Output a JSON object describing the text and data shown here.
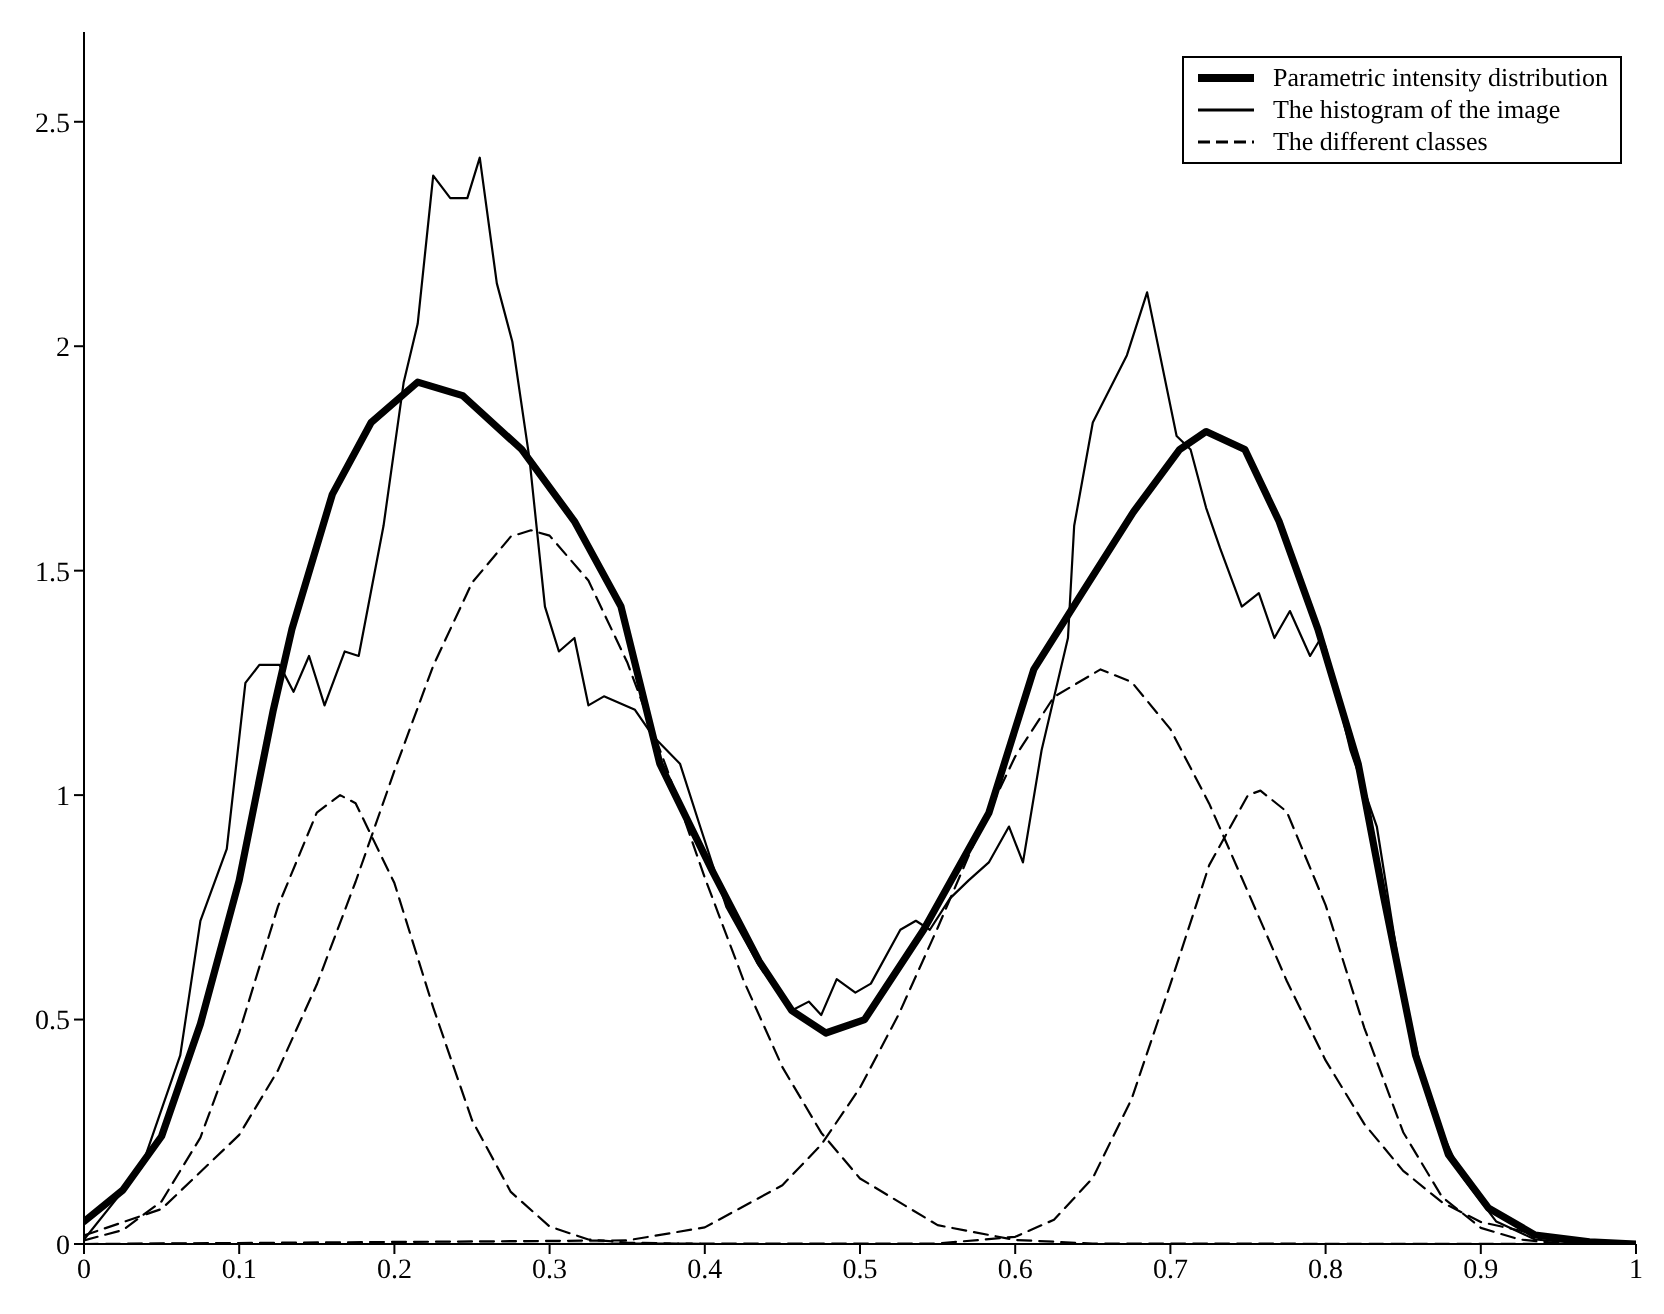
{
  "chart_data": {
    "type": "line",
    "xlim": [
      0,
      1
    ],
    "ylim": [
      0,
      2.7
    ],
    "xticks": [
      0,
      0.1,
      0.2,
      0.3,
      0.4,
      0.5,
      0.6,
      0.7,
      0.8,
      0.9,
      1
    ],
    "yticks": [
      0,
      0.5,
      1,
      1.5,
      2,
      2.5
    ],
    "grid": false,
    "legend": "top right",
    "series": [
      {
        "name": "Parametric intensity distribution",
        "color": "#000000",
        "line_style": "solid",
        "x": [
          0,
          0.025,
          0.05,
          0.075,
          0.1,
          0.122,
          0.134,
          0.16,
          0.185,
          0.215,
          0.244,
          0.282,
          0.316,
          0.346,
          0.371,
          0.405,
          0.435,
          0.456,
          0.478,
          0.503,
          0.541,
          0.583,
          0.612,
          0.643,
          0.676,
          0.706,
          0.723,
          0.748,
          0.77,
          0.795,
          0.821,
          0.837,
          0.858,
          0.879,
          0.905,
          0.935,
          0.97,
          1
        ],
        "values": [
          0.05,
          0.12,
          0.24,
          0.49,
          0.81,
          1.19,
          1.37,
          1.67,
          1.83,
          1.92,
          1.89,
          1.77,
          1.61,
          1.42,
          1.07,
          0.83,
          0.63,
          0.52,
          0.47,
          0.5,
          0.7,
          0.96,
          1.28,
          1.45,
          1.63,
          1.77,
          1.81,
          1.77,
          1.61,
          1.37,
          1.07,
          0.78,
          0.42,
          0.2,
          0.08,
          0.02,
          0.005,
          0
        ]
      },
      {
        "name": "The histogram of the image",
        "color": "#000000",
        "line_style": "solid",
        "x": [
          0,
          0.037,
          0.062,
          0.075,
          0.092,
          0.104,
          0.113,
          0.126,
          0.135,
          0.145,
          0.155,
          0.168,
          0.177,
          0.193,
          0.206,
          0.215,
          0.225,
          0.236,
          0.247,
          0.255,
          0.266,
          0.276,
          0.287,
          0.297,
          0.306,
          0.316,
          0.325,
          0.335,
          0.355,
          0.367,
          0.384,
          0.397,
          0.414,
          0.435,
          0.456,
          0.467,
          0.475,
          0.485,
          0.497,
          0.507,
          0.526,
          0.536,
          0.545,
          0.558,
          0.57,
          0.583,
          0.596,
          0.605,
          0.617,
          0.634,
          0.638,
          0.65,
          0.672,
          0.685,
          0.704,
          0.713,
          0.723,
          0.732,
          0.746,
          0.757,
          0.767,
          0.777,
          0.79,
          0.797,
          0.8,
          0.816,
          0.833,
          0.85,
          0.867,
          0.888,
          0.91,
          0.935,
          0.97,
          1
        ],
        "values": [
          0.01,
          0.17,
          0.42,
          0.72,
          0.88,
          1.25,
          1.29,
          1.29,
          1.23,
          1.31,
          1.2,
          1.32,
          1.31,
          1.6,
          1.92,
          2.05,
          2.38,
          2.33,
          2.33,
          2.42,
          2.14,
          2.01,
          1.75,
          1.42,
          1.32,
          1.35,
          1.2,
          1.22,
          1.19,
          1.13,
          1.07,
          0.93,
          0.75,
          0.62,
          0.52,
          0.54,
          0.51,
          0.59,
          0.56,
          0.58,
          0.7,
          0.72,
          0.7,
          0.77,
          0.81,
          0.85,
          0.93,
          0.85,
          1.1,
          1.35,
          1.6,
          1.83,
          1.98,
          2.12,
          1.8,
          1.77,
          1.64,
          1.55,
          1.42,
          1.45,
          1.35,
          1.41,
          1.31,
          1.35,
          1.33,
          1.1,
          0.93,
          0.56,
          0.31,
          0.15,
          0.05,
          0.01,
          0,
          0
        ]
      },
      {
        "name": "The different classes",
        "color": "#000000",
        "line_style": "dashed",
        "x": [
          0,
          0.025,
          0.05,
          0.075,
          0.1,
          0.125,
          0.15,
          0.165,
          0.175,
          0.2,
          0.225,
          0.25,
          0.275,
          0.3,
          0.325,
          0.35,
          0.4,
          1
        ],
        "values": [
          0.008,
          0.031,
          0.095,
          0.237,
          0.471,
          0.752,
          0.961,
          1,
          0.982,
          0.804,
          0.527,
          0.276,
          0.116,
          0.039,
          0.01,
          0.003,
          0,
          0
        ]
      },
      {
        "color": "#000000",
        "line_style": "dashed",
        "x": [
          0,
          0.05,
          0.1,
          0.125,
          0.15,
          0.175,
          0.2,
          0.225,
          0.25,
          0.275,
          0.288,
          0.3,
          0.325,
          0.35,
          0.375,
          0.4,
          0.425,
          0.45,
          0.475,
          0.5,
          0.55,
          0.6,
          0.65,
          1
        ],
        "values": [
          0.019,
          0.078,
          0.243,
          0.387,
          0.578,
          0.807,
          1.054,
          1.288,
          1.473,
          1.576,
          1.59,
          1.578,
          1.478,
          1.296,
          1.064,
          0.816,
          0.587,
          0.394,
          0.248,
          0.146,
          0.042,
          0.009,
          0.001,
          0
        ]
      },
      {
        "color": "#000000",
        "line_style": "dashed",
        "x": [
          0,
          0.35,
          0.4,
          0.45,
          0.475,
          0.5,
          0.525,
          0.55,
          0.575,
          0.6,
          0.625,
          0.655,
          0.675,
          0.7,
          0.725,
          0.75,
          0.775,
          0.8,
          0.825,
          0.85,
          0.875,
          0.9,
          0.95,
          1
        ],
        "values": [
          0,
          0.008,
          0.037,
          0.131,
          0.221,
          0.348,
          0.512,
          0.704,
          0.905,
          1.086,
          1.219,
          1.28,
          1.252,
          1.147,
          0.981,
          0.784,
          0.586,
          0.409,
          0.267,
          0.163,
          0.093,
          0.049,
          0.011,
          0.001
        ]
      },
      {
        "color": "#000000",
        "line_style": "dashed",
        "x": [
          0,
          0.55,
          0.6,
          0.625,
          0.65,
          0.675,
          0.7,
          0.725,
          0.75,
          0.758,
          0.775,
          0.8,
          0.825,
          0.85,
          0.875,
          0.9,
          0.925,
          0.95,
          1
        ],
        "values": [
          0,
          0.001,
          0.016,
          0.054,
          0.147,
          0.323,
          0.579,
          0.844,
          1.0,
          1.01,
          0.963,
          0.755,
          0.481,
          0.249,
          0.105,
          0.036,
          0.01,
          0.002,
          0
        ]
      }
    ]
  }
}
